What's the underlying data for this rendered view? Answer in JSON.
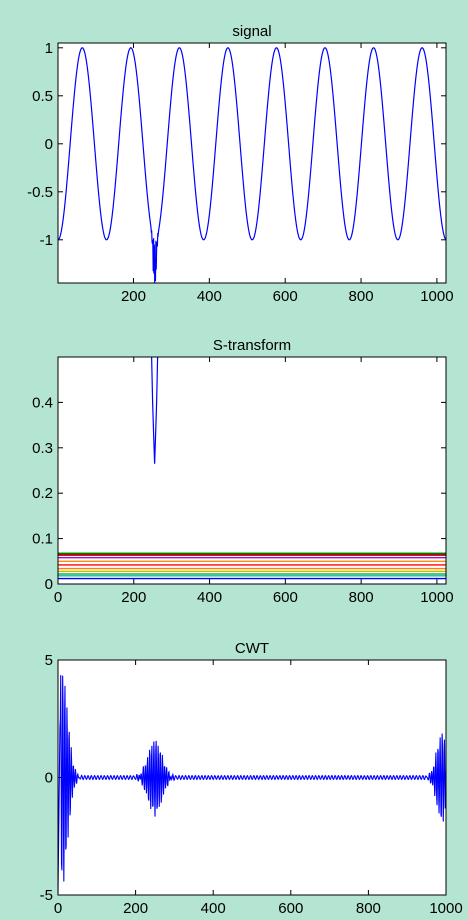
{
  "figure": {
    "background": "#b4e4d2",
    "axes_background": "#ffffff",
    "line_color": "#0000ff"
  },
  "chart_data": [
    {
      "type": "line",
      "title": "signal",
      "xlabel": "",
      "ylabel": "",
      "xlim": [
        1,
        1024
      ],
      "ylim": [
        -1.45,
        1.05
      ],
      "xticks": [
        200,
        400,
        600,
        800,
        1000
      ],
      "xtick_labels": [
        "200",
        "400",
        "600",
        "800",
        "1000"
      ],
      "yticks": [
        1,
        0.5,
        0,
        -0.5,
        -1
      ],
      "ytick_labels": [
        "1",
        "0.5",
        "0",
        "-0.5",
        "-1"
      ],
      "grid": false,
      "series": [
        {
          "color": "#0000ff",
          "description_points": {
            "sinusoid_period_samples": 128,
            "amplitude": 1,
            "first_minimum_at": 1,
            "transient_spike_near_x": 256,
            "transient_min": -1.45
          },
          "x": [
            1,
            65,
            129,
            193,
            257,
            321,
            385,
            449,
            513,
            577,
            641,
            705,
            769,
            833,
            897,
            961,
            1024
          ],
          "y": [
            -1,
            1,
            -1,
            1,
            -1,
            1,
            -1,
            1,
            -1,
            1,
            -1,
            1,
            -1,
            1,
            -1,
            1,
            -1
          ]
        }
      ]
    },
    {
      "type": "line",
      "title": "S-transform",
      "xlabel": "",
      "ylabel": "",
      "xlim": [
        0,
        1024
      ],
      "ylim": [
        0,
        0.5
      ],
      "xticks": [
        0,
        200,
        400,
        600,
        800,
        1000
      ],
      "xtick_labels": [
        "0",
        "200",
        "400",
        "600",
        "800",
        "1000"
      ],
      "yticks": [
        0.4,
        0.3,
        0.2,
        0.1,
        0
      ],
      "ytick_labels": [
        "0.4",
        "0.3",
        "0.2",
        "0.1",
        "0"
      ],
      "grid": false,
      "series": [
        {
          "color": "#0000ff",
          "spike_x": 255,
          "spike_min": 0.265,
          "spike_max": 0.5,
          "baseline": 0.012
        },
        {
          "color": "#00bfbf",
          "level": 0.018
        },
        {
          "color": "#00a000",
          "level": 0.022
        },
        {
          "color": "#bfbf00",
          "level": 0.028
        },
        {
          "color": "#ff7f00",
          "level": 0.034
        },
        {
          "color": "#ff0000",
          "level": 0.042
        },
        {
          "color": "#ff8c00",
          "level": 0.05
        },
        {
          "color": "#bf00bf",
          "level": 0.058
        },
        {
          "color": "#ff0000",
          "level": 0.063
        },
        {
          "color": "#000000",
          "level": 0.066
        },
        {
          "color": "#00a000",
          "level": 0.068
        }
      ]
    },
    {
      "type": "line",
      "title": "CWT",
      "xlabel": "",
      "ylabel": "",
      "xlim": [
        0,
        1000
      ],
      "ylim": [
        -5,
        5
      ],
      "xticks": [
        0,
        200,
        400,
        600,
        800,
        1000
      ],
      "xtick_labels": [
        "0",
        "200",
        "400",
        "600",
        "800",
        "1000"
      ],
      "yticks": [
        5,
        0,
        -5
      ],
      "ytick_labels": [
        "5",
        "0",
        "-5"
      ],
      "grid": false,
      "series": [
        {
          "color": "#0000ff",
          "bursts": [
            {
              "center": 10,
              "amplitude": 4.6,
              "width": 15
            },
            {
              "center": 250,
              "amplitude": 1.6,
              "width": 18
            },
            {
              "center": 990,
              "amplitude": 1.9,
              "width": 14
            }
          ],
          "background_ripple_amplitude": 0.08
        }
      ]
    }
  ]
}
